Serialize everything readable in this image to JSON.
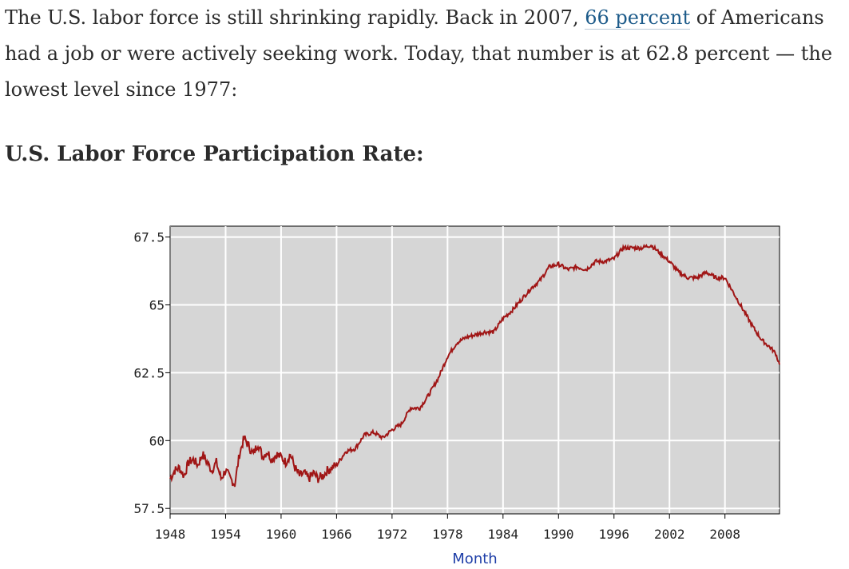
{
  "article": {
    "text_before_link": "The U.S. labor force is still shrinking rapidly. Back in 2007, ",
    "link_text": "66 percent",
    "text_after_link": " of Americans had a job or were actively seeking work. Today, that number is at 62.8 percent — the lowest level since 1977:",
    "heading": "U.S. Labor Force Participation Rate:"
  },
  "chart_data": {
    "type": "line",
    "title": "",
    "xlabel": "Month",
    "ylabel": "",
    "xlim": [
      1948,
      2013.9
    ],
    "ylim": [
      57.3,
      67.9
    ],
    "x_ticks": [
      1948,
      1954,
      1960,
      1966,
      1972,
      1978,
      1984,
      1990,
      1996,
      2002,
      2008
    ],
    "y_ticks": [
      57.5,
      60,
      62.5,
      65,
      67.5
    ],
    "y_tick_labels": [
      "57.5",
      "60",
      "62.5",
      "65",
      "67.5"
    ],
    "grid": true,
    "colors": {
      "line": "#a01616",
      "plot_bg": "#d6d6d6",
      "grid": "#ffffff",
      "axis_title": "#1f3fa8"
    },
    "series": [
      {
        "values": [
          [
            1948.0,
            58.6
          ],
          [
            1948.5,
            58.9
          ],
          [
            1949.0,
            59.0
          ],
          [
            1949.5,
            58.7
          ],
          [
            1950.0,
            59.2
          ],
          [
            1950.5,
            59.3
          ],
          [
            1951.0,
            59.1
          ],
          [
            1951.5,
            59.5
          ],
          [
            1952.0,
            59.2
          ],
          [
            1952.5,
            58.9
          ],
          [
            1953.0,
            59.2
          ],
          [
            1953.5,
            58.6
          ],
          [
            1954.0,
            58.9
          ],
          [
            1954.5,
            58.6
          ],
          [
            1955.0,
            58.4
          ],
          [
            1955.5,
            59.5
          ],
          [
            1956.0,
            60.1
          ],
          [
            1956.5,
            59.8
          ],
          [
            1957.0,
            59.5
          ],
          [
            1957.5,
            59.9
          ],
          [
            1958.0,
            59.4
          ],
          [
            1958.5,
            59.6
          ],
          [
            1959.0,
            59.3
          ],
          [
            1959.5,
            59.5
          ],
          [
            1960.0,
            59.4
          ],
          [
            1960.5,
            59.2
          ],
          [
            1961.0,
            59.5
          ],
          [
            1961.5,
            59.0
          ],
          [
            1962.0,
            58.7
          ],
          [
            1962.5,
            58.8
          ],
          [
            1963.0,
            58.6
          ],
          [
            1963.5,
            58.8
          ],
          [
            1964.0,
            58.6
          ],
          [
            1964.5,
            58.7
          ],
          [
            1965.0,
            58.9
          ],
          [
            1966.0,
            59.1
          ],
          [
            1967.0,
            59.6
          ],
          [
            1968.0,
            59.7
          ],
          [
            1969.0,
            60.2
          ],
          [
            1970.0,
            60.3
          ],
          [
            1971.0,
            60.1
          ],
          [
            1972.0,
            60.4
          ],
          [
            1973.0,
            60.6
          ],
          [
            1974.0,
            61.2
          ],
          [
            1975.0,
            61.2
          ],
          [
            1976.0,
            61.7
          ],
          [
            1977.0,
            62.3
          ],
          [
            1978.0,
            63.1
          ],
          [
            1979.0,
            63.6
          ],
          [
            1980.0,
            63.8
          ],
          [
            1981.0,
            63.9
          ],
          [
            1982.0,
            64.0
          ],
          [
            1983.0,
            64.0
          ],
          [
            1984.0,
            64.5
          ],
          [
            1985.0,
            64.8
          ],
          [
            1986.0,
            65.2
          ],
          [
            1987.0,
            65.6
          ],
          [
            1988.0,
            65.9
          ],
          [
            1989.0,
            66.4
          ],
          [
            1990.0,
            66.5
          ],
          [
            1991.0,
            66.3
          ],
          [
            1992.0,
            66.4
          ],
          [
            1993.0,
            66.3
          ],
          [
            1994.0,
            66.6
          ],
          [
            1995.0,
            66.6
          ],
          [
            1996.0,
            66.7
          ],
          [
            1997.0,
            67.1
          ],
          [
            1998.0,
            67.1
          ],
          [
            1999.0,
            67.1
          ],
          [
            2000.0,
            67.2
          ],
          [
            2001.0,
            66.9
          ],
          [
            2002.0,
            66.6
          ],
          [
            2003.0,
            66.2
          ],
          [
            2004.0,
            66.0
          ],
          [
            2005.0,
            66.0
          ],
          [
            2006.0,
            66.2
          ],
          [
            2007.0,
            66.0
          ],
          [
            2008.0,
            66.0
          ],
          [
            2009.0,
            65.4
          ],
          [
            2010.0,
            64.8
          ],
          [
            2011.0,
            64.2
          ],
          [
            2012.0,
            63.7
          ],
          [
            2013.0,
            63.4
          ],
          [
            2013.5,
            63.2
          ],
          [
            2013.9,
            62.8
          ]
        ]
      }
    ]
  }
}
